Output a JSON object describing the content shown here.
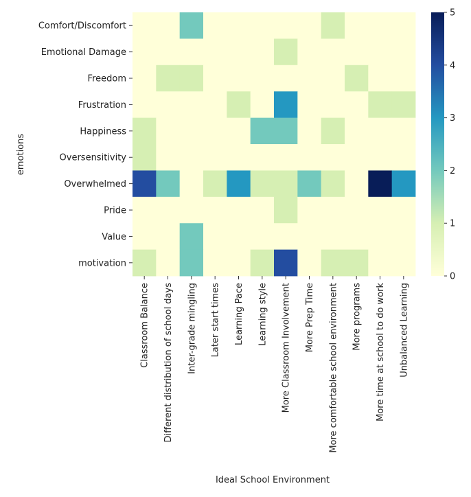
{
  "chart_data": {
    "type": "heatmap",
    "title": "",
    "xlabel": "Ideal School Environment",
    "ylabel": "emotions",
    "x_categories": [
      "Classroom Balance",
      "Different distribution of school days",
      "Inter-grade mingling",
      "Later start times",
      "Learning Pace",
      "Learning style",
      "More Classroom Involvement",
      "More Prep Time",
      "More comfortable school environment",
      "More programs",
      "More time at school to do work",
      "Unbalanced Learning"
    ],
    "y_categories": [
      "Comfort/Discomfort",
      "Emotional Damage",
      "Freedom",
      "Frustration",
      "Happiness",
      "Oversensitivity",
      "Overwhelmed",
      "Pride",
      "Value",
      "motivation"
    ],
    "values": [
      [
        0,
        0,
        2,
        0,
        0,
        0,
        0,
        0,
        1,
        0,
        0,
        0
      ],
      [
        0,
        0,
        0,
        0,
        0,
        0,
        1,
        0,
        0,
        0,
        0,
        0
      ],
      [
        0,
        1,
        1,
        0,
        0,
        0,
        0,
        0,
        0,
        1,
        0,
        0
      ],
      [
        0,
        0,
        0,
        0,
        1,
        0,
        3,
        0,
        0,
        0,
        1,
        1
      ],
      [
        1,
        0,
        0,
        0,
        0,
        2,
        2,
        0,
        1,
        0,
        0,
        0
      ],
      [
        1,
        0,
        0,
        0,
        0,
        0,
        0,
        0,
        0,
        0,
        0,
        0
      ],
      [
        4,
        2,
        0,
        1,
        3,
        1,
        1,
        2,
        1,
        0,
        5,
        3
      ],
      [
        0,
        0,
        0,
        0,
        0,
        0,
        1,
        0,
        0,
        0,
        0,
        0
      ],
      [
        0,
        0,
        2,
        0,
        0,
        0,
        0,
        0,
        0,
        0,
        0,
        0
      ],
      [
        1,
        0,
        2,
        0,
        0,
        1,
        4,
        0,
        1,
        1,
        0,
        0
      ]
    ],
    "vmin": 0,
    "vmax": 5,
    "colorscale": "YlGnBu",
    "colorbar_ticks": [
      "0",
      "1",
      "2",
      "3",
      "4",
      "5"
    ],
    "palette": [
      "#ffffd9",
      "#d6efb3",
      "#73c9bd",
      "#2498c1",
      "#234da0",
      "#081d58"
    ]
  }
}
